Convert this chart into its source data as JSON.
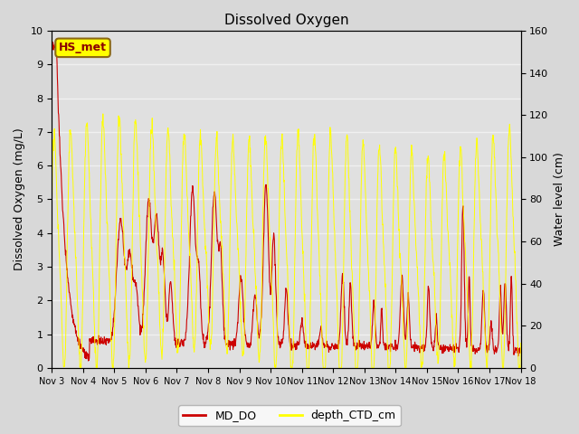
{
  "title": "Dissolved Oxygen",
  "ylabel_left": "Dissolved Oxygen (mg/L)",
  "ylabel_right": "Water level (cm)",
  "ylim_left": [
    0,
    10.0
  ],
  "ylim_right": [
    0,
    160
  ],
  "yticks_left": [
    0.0,
    1.0,
    2.0,
    3.0,
    4.0,
    5.0,
    6.0,
    7.0,
    8.0,
    9.0,
    10.0
  ],
  "yticks_right": [
    0,
    20,
    40,
    60,
    80,
    100,
    120,
    140,
    160
  ],
  "xtick_labels": [
    "Nov 3",
    "Nov 4",
    "Nov 5",
    "Nov 6",
    "Nov 7",
    "Nov 8",
    "Nov 9",
    "Nov 10",
    "Nov 11",
    "Nov 12",
    "Nov 13",
    "Nov 14",
    "Nov 15",
    "Nov 16",
    "Nov 17",
    "Nov 18"
  ],
  "legend_labels": [
    "MD_DO",
    "depth_CTD_cm"
  ],
  "legend_colors": [
    "#cc0000",
    "#ffff00"
  ],
  "annotation_text": "HS_met",
  "annotation_color": "#ffff00",
  "annotation_border": "#8b6914",
  "bg_color": "#d8d8d8",
  "plot_bg_color": "#e0e0e0",
  "grid_color": "#f0f0f0",
  "md_do_color": "#cc0000",
  "depth_color": "#ffff00",
  "n_days": 15,
  "n_points": 1440
}
